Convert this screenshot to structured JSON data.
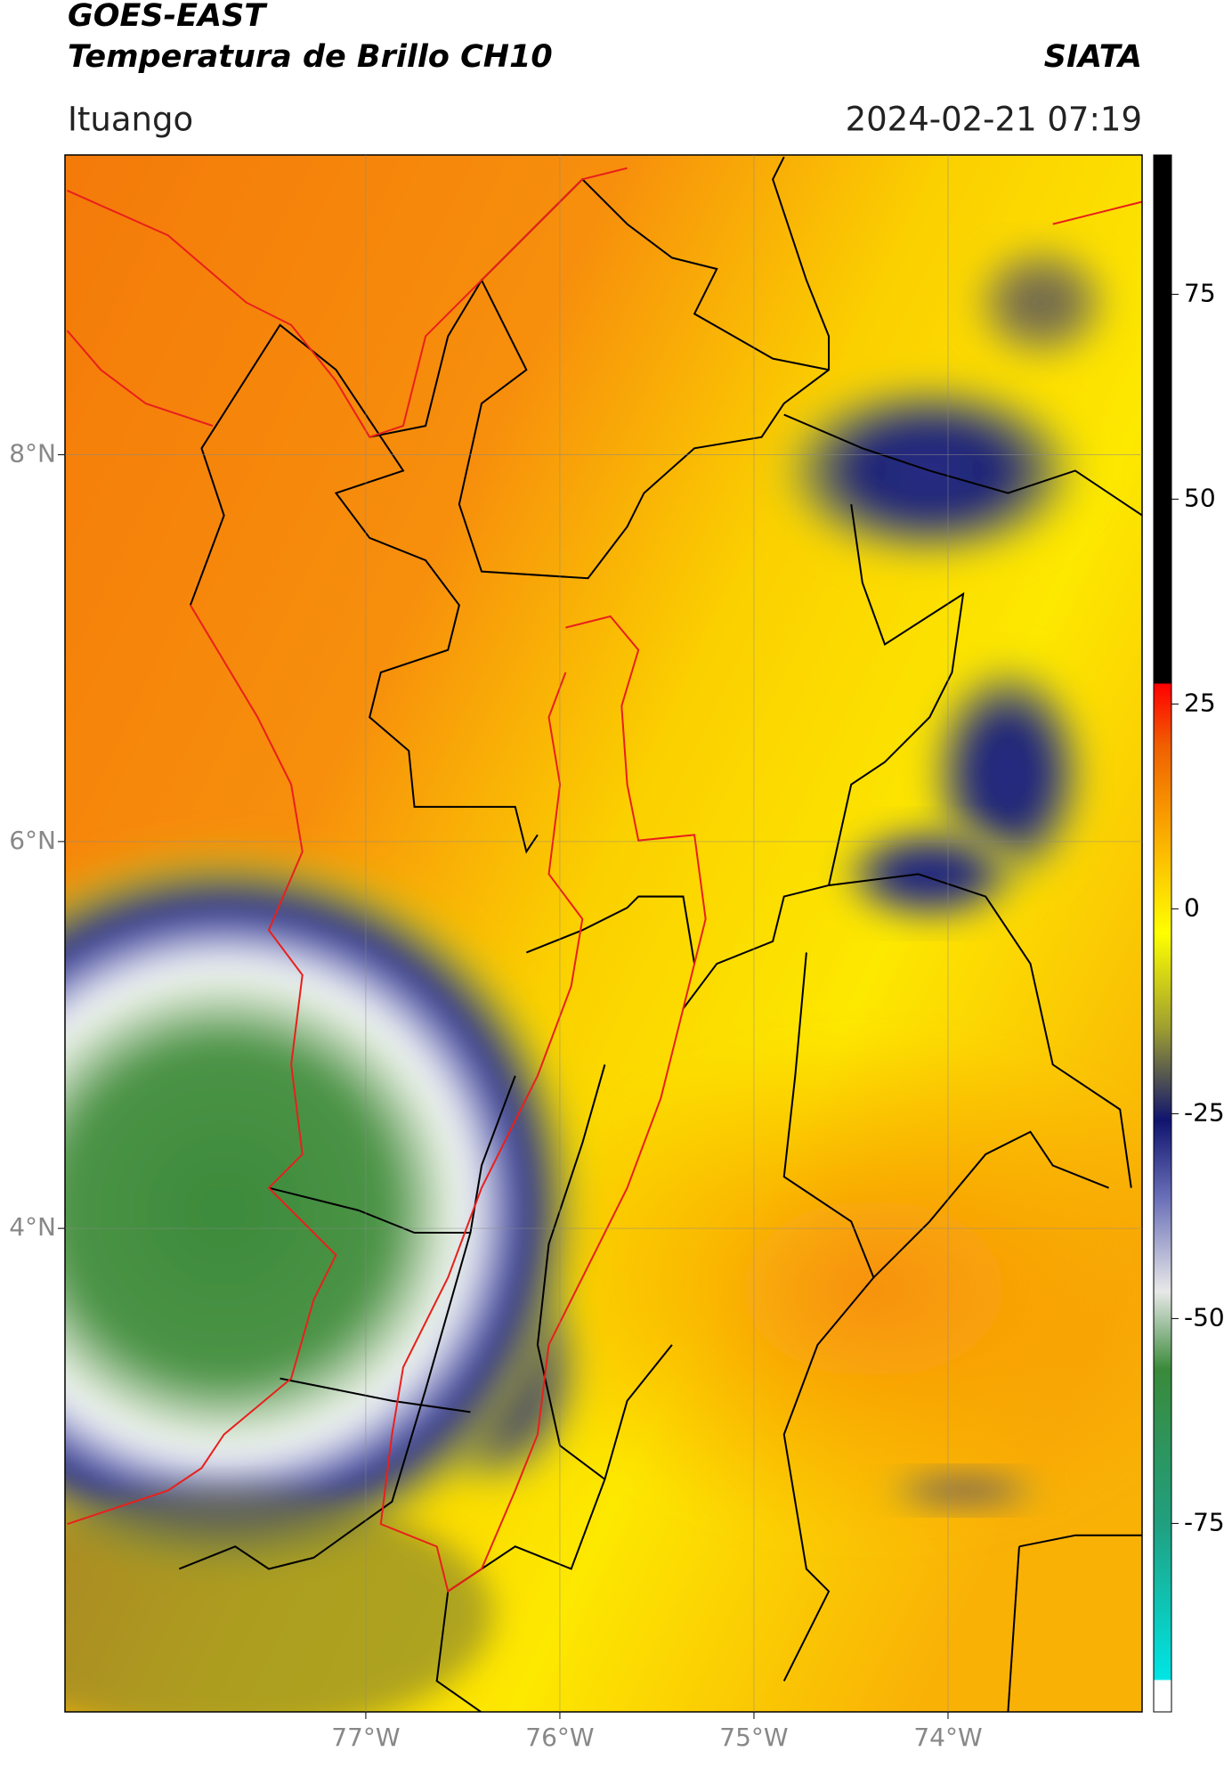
{
  "header": {
    "title": "GOES-EAST",
    "subtitle": "Temperatura de Brillo CH10",
    "source": "SIATA",
    "location": "Ituango",
    "datetime": "2024-02-21 07:19"
  },
  "chart_data": {
    "type": "map",
    "xlim": [
      -78.55,
      -73.0
    ],
    "ylim": [
      1.5,
      9.55
    ],
    "xticks": [
      {
        "value": -77,
        "label": "77°W"
      },
      {
        "value": -76,
        "label": "76°W"
      },
      {
        "value": -75,
        "label": "75°W"
      },
      {
        "value": -74,
        "label": "74°W"
      }
    ],
    "yticks": [
      {
        "value": 4,
        "label": "4°N"
      },
      {
        "value": 6,
        "label": "6°N"
      },
      {
        "value": 8,
        "label": "8°N"
      }
    ],
    "grid": true,
    "colorbar": {
      "lim": [
        -98,
        92
      ],
      "ticks": [
        -75,
        -50,
        -25,
        0,
        25,
        50,
        75
      ]
    }
  }
}
